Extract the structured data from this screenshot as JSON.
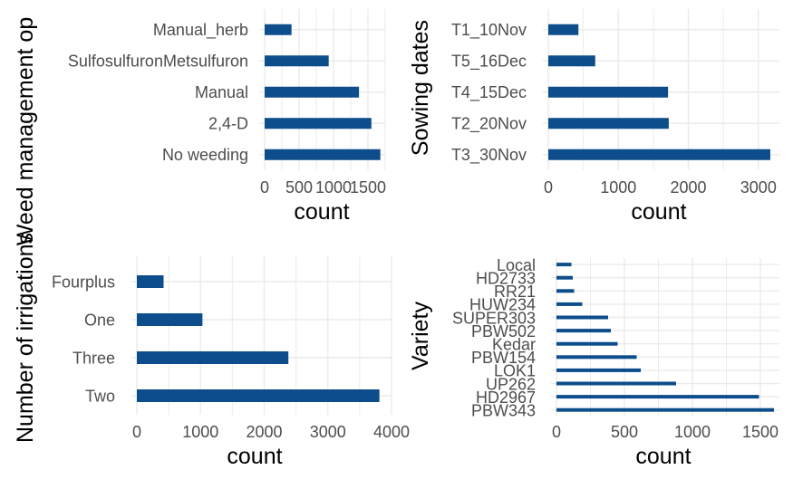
{
  "chart_data": [
    {
      "type": "bar",
      "orientation": "horizontal",
      "ylabel": "Weed management op",
      "xlabel": "count",
      "categories": [
        "No weeding",
        "2,4-D",
        "Manual",
        "SulfosulfuronMetsulfuron",
        "Manual_herb"
      ],
      "values": [
        1680,
        1550,
        1370,
        930,
        390
      ],
      "xlim": [
        0,
        1750
      ],
      "xticks": [
        0,
        500,
        1000,
        1500
      ],
      "xtick_labels": [
        "0",
        "500",
        "1000",
        "1500"
      ],
      "grid": true,
      "color": "#0e4d8c"
    },
    {
      "type": "bar",
      "orientation": "horizontal",
      "ylabel": "Sowing dates",
      "xlabel": "count",
      "categories": [
        "T3_30Nov",
        "T2_20Nov",
        "T4_15Dec",
        "T5_16Dec",
        "T1_10Nov"
      ],
      "values": [
        3170,
        1720,
        1710,
        670,
        430
      ],
      "xlim": [
        0,
        3300
      ],
      "xticks": [
        0,
        1000,
        2000,
        3000
      ],
      "xtick_labels": [
        "0",
        "1000",
        "2000",
        "3000"
      ],
      "grid": true,
      "color": "#0e4d8c"
    },
    {
      "type": "bar",
      "orientation": "horizontal",
      "ylabel": "Number of irrigations",
      "xlabel": "count",
      "categories": [
        "Two",
        "Three",
        "One",
        "Fourplus"
      ],
      "values": [
        3810,
        2380,
        1030,
        420
      ],
      "xlim": [
        0,
        4000
      ],
      "xticks": [
        0,
        1000,
        2000,
        3000,
        4000
      ],
      "xtick_labels": [
        "0",
        "1000",
        "2000",
        "3000",
        "4000"
      ],
      "grid": true,
      "color": "#0e4d8c"
    },
    {
      "type": "bar",
      "orientation": "horizontal",
      "ylabel": "Variety",
      "xlabel": "count",
      "categories": [
        "PBW343",
        "HD2967",
        "UP262",
        "LOK1",
        "PBW154",
        "Kedar",
        "PBW502",
        "SUPER303",
        "HUW234",
        "RR21",
        "HD2733",
        "Local"
      ],
      "values": [
        1600,
        1490,
        880,
        620,
        590,
        450,
        400,
        380,
        190,
        130,
        120,
        110
      ],
      "xlim": [
        0,
        1640
      ],
      "xticks": [
        0,
        500,
        1000,
        1500
      ],
      "xtick_labels": [
        "0",
        "500",
        "1000",
        "1500"
      ],
      "grid": true,
      "color": "#0e4d8c"
    }
  ]
}
